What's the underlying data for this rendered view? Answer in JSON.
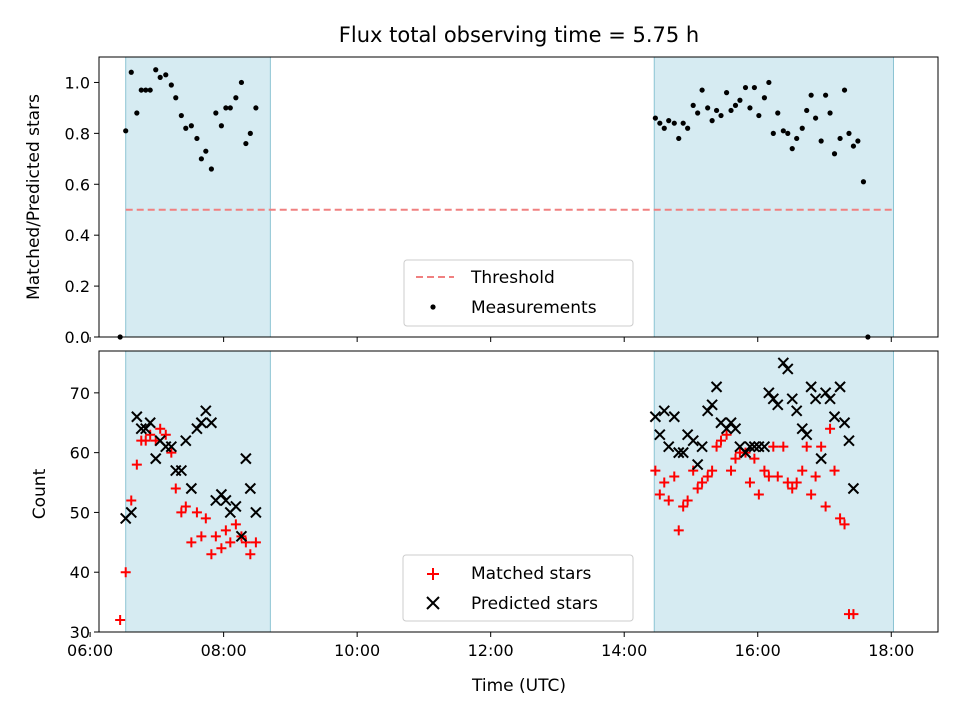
{
  "title": "Flux total observing time = 5.75 h",
  "chart_data": [
    {
      "type": "scatter",
      "panel": "top",
      "ylabel": "Matched/Predicted stars",
      "xlabel": "",
      "xlim": [
        "06:08",
        "18:42"
      ],
      "ylim": [
        0,
        1.1
      ],
      "yticks": [
        0.0,
        0.2,
        0.4,
        0.6,
        0.8,
        1.0
      ],
      "ytick_labels": [
        "0.0",
        "0.2",
        "0.4",
        "0.6",
        "0.8",
        "1.0"
      ],
      "legend_position": "lower-center",
      "shaded_intervals": [
        [
          "06:32",
          "08:42"
        ],
        [
          "14:27",
          "18:02"
        ]
      ],
      "threshold": {
        "name": "Threshold",
        "y": 0.5,
        "x_start": "06:32",
        "x_end": "18:02",
        "color": "#f08080",
        "style": "dashed"
      },
      "series": [
        {
          "name": "Measurements",
          "marker": "dot",
          "color": "#000000",
          "points": [
            [
              "06:27",
              0.0
            ],
            [
              "06:32",
              0.81
            ],
            [
              "06:37",
              1.04
            ],
            [
              "06:42",
              0.88
            ],
            [
              "06:46",
              0.97
            ],
            [
              "06:50",
              0.97
            ],
            [
              "06:54",
              0.97
            ],
            [
              "06:59",
              1.05
            ],
            [
              "07:03",
              1.02
            ],
            [
              "07:08",
              1.03
            ],
            [
              "07:13",
              0.99
            ],
            [
              "07:17",
              0.94
            ],
            [
              "07:22",
              0.87
            ],
            [
              "07:26",
              0.82
            ],
            [
              "07:31",
              0.83
            ],
            [
              "07:36",
              0.78
            ],
            [
              "07:40",
              0.7
            ],
            [
              "07:44",
              0.73
            ],
            [
              "07:49",
              0.66
            ],
            [
              "07:53",
              0.88
            ],
            [
              "07:58",
              0.83
            ],
            [
              "08:02",
              0.9
            ],
            [
              "08:06",
              0.9
            ],
            [
              "08:11",
              0.94
            ],
            [
              "08:16",
              1.0
            ],
            [
              "08:20",
              0.76
            ],
            [
              "08:24",
              0.8
            ],
            [
              "08:29",
              0.9
            ],
            [
              "14:28",
              0.86
            ],
            [
              "14:32",
              0.84
            ],
            [
              "14:36",
              0.82
            ],
            [
              "14:40",
              0.85
            ],
            [
              "14:45",
              0.84
            ],
            [
              "14:49",
              0.78
            ],
            [
              "14:53",
              0.84
            ],
            [
              "14:57",
              0.82
            ],
            [
              "15:02",
              0.91
            ],
            [
              "15:06",
              0.88
            ],
            [
              "15:10",
              0.97
            ],
            [
              "15:15",
              0.9
            ],
            [
              "15:19",
              0.85
            ],
            [
              "15:23",
              0.89
            ],
            [
              "15:27",
              0.87
            ],
            [
              "15:32",
              0.96
            ],
            [
              "15:36",
              0.89
            ],
            [
              "15:40",
              0.91
            ],
            [
              "15:44",
              0.93
            ],
            [
              "15:49",
              0.98
            ],
            [
              "15:53",
              0.9
            ],
            [
              "15:57",
              0.98
            ],
            [
              "16:01",
              0.87
            ],
            [
              "16:06",
              0.94
            ],
            [
              "16:10",
              1.0
            ],
            [
              "16:14",
              0.8
            ],
            [
              "16:18",
              0.88
            ],
            [
              "16:23",
              0.81
            ],
            [
              "16:27",
              0.8
            ],
            [
              "16:31",
              0.74
            ],
            [
              "16:35",
              0.78
            ],
            [
              "16:40",
              0.82
            ],
            [
              "16:44",
              0.89
            ],
            [
              "16:48",
              0.95
            ],
            [
              "16:52",
              0.86
            ],
            [
              "16:57",
              0.77
            ],
            [
              "17:01",
              0.95
            ],
            [
              "17:05",
              0.88
            ],
            [
              "17:09",
              0.72
            ],
            [
              "17:14",
              0.78
            ],
            [
              "17:18",
              0.97
            ],
            [
              "17:22",
              0.8
            ],
            [
              "17:26",
              0.75
            ],
            [
              "17:30",
              0.77
            ],
            [
              "17:35",
              0.61
            ],
            [
              "17:39",
              0.0
            ]
          ]
        }
      ]
    },
    {
      "type": "scatter",
      "panel": "bottom",
      "ylabel": "Count",
      "xlabel": "Time (UTC)",
      "xlim": [
        "06:08",
        "18:42"
      ],
      "ylim": [
        30,
        77
      ],
      "yticks": [
        30,
        40,
        50,
        60,
        70
      ],
      "ytick_labels": [
        "30",
        "40",
        "50",
        "60",
        "70"
      ],
      "xticks": [
        "06:00",
        "08:00",
        "10:00",
        "12:00",
        "14:00",
        "16:00",
        "18:00"
      ],
      "xtick_labels": [
        "06:00",
        "08:00",
        "10:00",
        "12:00",
        "14:00",
        "16:00",
        "18:00"
      ],
      "legend_position": "lower-center",
      "shaded_intervals": [
        [
          "06:32",
          "08:42"
        ],
        [
          "14:27",
          "18:02"
        ]
      ],
      "series": [
        {
          "name": "Matched stars",
          "marker": "plus",
          "color": "#ff0000",
          "points": [
            [
              "06:27",
              32
            ],
            [
              "06:32",
              40
            ],
            [
              "06:37",
              52
            ],
            [
              "06:42",
              58
            ],
            [
              "06:46",
              62
            ],
            [
              "06:50",
              62
            ],
            [
              "06:54",
              63
            ],
            [
              "06:59",
              62
            ],
            [
              "07:03",
              64
            ],
            [
              "07:08",
              63
            ],
            [
              "07:13",
              60
            ],
            [
              "07:17",
              54
            ],
            [
              "07:22",
              50
            ],
            [
              "07:26",
              51
            ],
            [
              "07:31",
              45
            ],
            [
              "07:36",
              50
            ],
            [
              "07:40",
              46
            ],
            [
              "07:44",
              49
            ],
            [
              "07:49",
              43
            ],
            [
              "07:53",
              46
            ],
            [
              "07:58",
              44
            ],
            [
              "08:02",
              47
            ],
            [
              "08:06",
              45
            ],
            [
              "08:11",
              48
            ],
            [
              "08:16",
              46
            ],
            [
              "08:20",
              45
            ],
            [
              "08:24",
              43
            ],
            [
              "08:29",
              45
            ],
            [
              "14:28",
              57
            ],
            [
              "14:32",
              53
            ],
            [
              "14:36",
              55
            ],
            [
              "14:40",
              52
            ],
            [
              "14:45",
              56
            ],
            [
              "14:49",
              47
            ],
            [
              "14:53",
              51
            ],
            [
              "14:57",
              52
            ],
            [
              "15:02",
              57
            ],
            [
              "15:06",
              54
            ],
            [
              "15:10",
              55
            ],
            [
              "15:15",
              56
            ],
            [
              "15:19",
              57
            ],
            [
              "15:23",
              61
            ],
            [
              "15:27",
              62
            ],
            [
              "15:32",
              63
            ],
            [
              "15:36",
              57
            ],
            [
              "15:40",
              59
            ],
            [
              "15:44",
              60
            ],
            [
              "15:49",
              60
            ],
            [
              "15:53",
              55
            ],
            [
              "15:57",
              59
            ],
            [
              "16:01",
              53
            ],
            [
              "16:06",
              57
            ],
            [
              "16:10",
              56
            ],
            [
              "16:14",
              61
            ],
            [
              "16:18",
              56
            ],
            [
              "16:23",
              61
            ],
            [
              "16:27",
              55
            ],
            [
              "16:31",
              54
            ],
            [
              "16:35",
              55
            ],
            [
              "16:40",
              57
            ],
            [
              "16:44",
              61
            ],
            [
              "16:48",
              53
            ],
            [
              "16:52",
              56
            ],
            [
              "16:57",
              61
            ],
            [
              "17:01",
              51
            ],
            [
              "17:05",
              64
            ],
            [
              "17:09",
              57
            ],
            [
              "17:14",
              49
            ],
            [
              "17:18",
              48
            ],
            [
              "17:22",
              33
            ],
            [
              "17:26",
              33
            ]
          ]
        },
        {
          "name": "Predicted stars",
          "marker": "x",
          "color": "#000000",
          "points": [
            [
              "06:32",
              49
            ],
            [
              "06:37",
              50
            ],
            [
              "06:42",
              66
            ],
            [
              "06:46",
              64
            ],
            [
              "06:50",
              64
            ],
            [
              "06:54",
              65
            ],
            [
              "06:59",
              59
            ],
            [
              "07:03",
              62
            ],
            [
              "07:08",
              61
            ],
            [
              "07:13",
              61
            ],
            [
              "07:17",
              57
            ],
            [
              "07:22",
              57
            ],
            [
              "07:26",
              62
            ],
            [
              "07:31",
              54
            ],
            [
              "07:36",
              64
            ],
            [
              "07:40",
              65
            ],
            [
              "07:44",
              67
            ],
            [
              "07:49",
              65
            ],
            [
              "07:53",
              52
            ],
            [
              "07:58",
              53
            ],
            [
              "08:02",
              52
            ],
            [
              "08:06",
              50
            ],
            [
              "08:11",
              51
            ],
            [
              "08:16",
              46
            ],
            [
              "08:20",
              59
            ],
            [
              "08:24",
              54
            ],
            [
              "08:29",
              50
            ],
            [
              "14:28",
              66
            ],
            [
              "14:32",
              63
            ],
            [
              "14:36",
              67
            ],
            [
              "14:40",
              61
            ],
            [
              "14:45",
              66
            ],
            [
              "14:49",
              60
            ],
            [
              "14:53",
              60
            ],
            [
              "14:57",
              63
            ],
            [
              "15:02",
              62
            ],
            [
              "15:06",
              58
            ],
            [
              "15:10",
              61
            ],
            [
              "15:15",
              67
            ],
            [
              "15:19",
              68
            ],
            [
              "15:23",
              71
            ],
            [
              "15:27",
              65
            ],
            [
              "15:32",
              64
            ],
            [
              "15:36",
              65
            ],
            [
              "15:40",
              64
            ],
            [
              "15:44",
              61
            ],
            [
              "15:49",
              60
            ],
            [
              "15:53",
              61
            ],
            [
              "15:57",
              61
            ],
            [
              "16:01",
              61
            ],
            [
              "16:06",
              61
            ],
            [
              "16:10",
              70
            ],
            [
              "16:14",
              69
            ],
            [
              "16:18",
              68
            ],
            [
              "16:23",
              75
            ],
            [
              "16:27",
              74
            ],
            [
              "16:31",
              69
            ],
            [
              "16:35",
              67
            ],
            [
              "16:40",
              64
            ],
            [
              "16:44",
              63
            ],
            [
              "16:48",
              71
            ],
            [
              "16:52",
              69
            ],
            [
              "16:57",
              59
            ],
            [
              "17:01",
              70
            ],
            [
              "17:05",
              69
            ],
            [
              "17:09",
              66
            ],
            [
              "17:14",
              71
            ],
            [
              "17:18",
              65
            ],
            [
              "17:22",
              62
            ],
            [
              "17:26",
              54
            ]
          ]
        }
      ]
    }
  ]
}
